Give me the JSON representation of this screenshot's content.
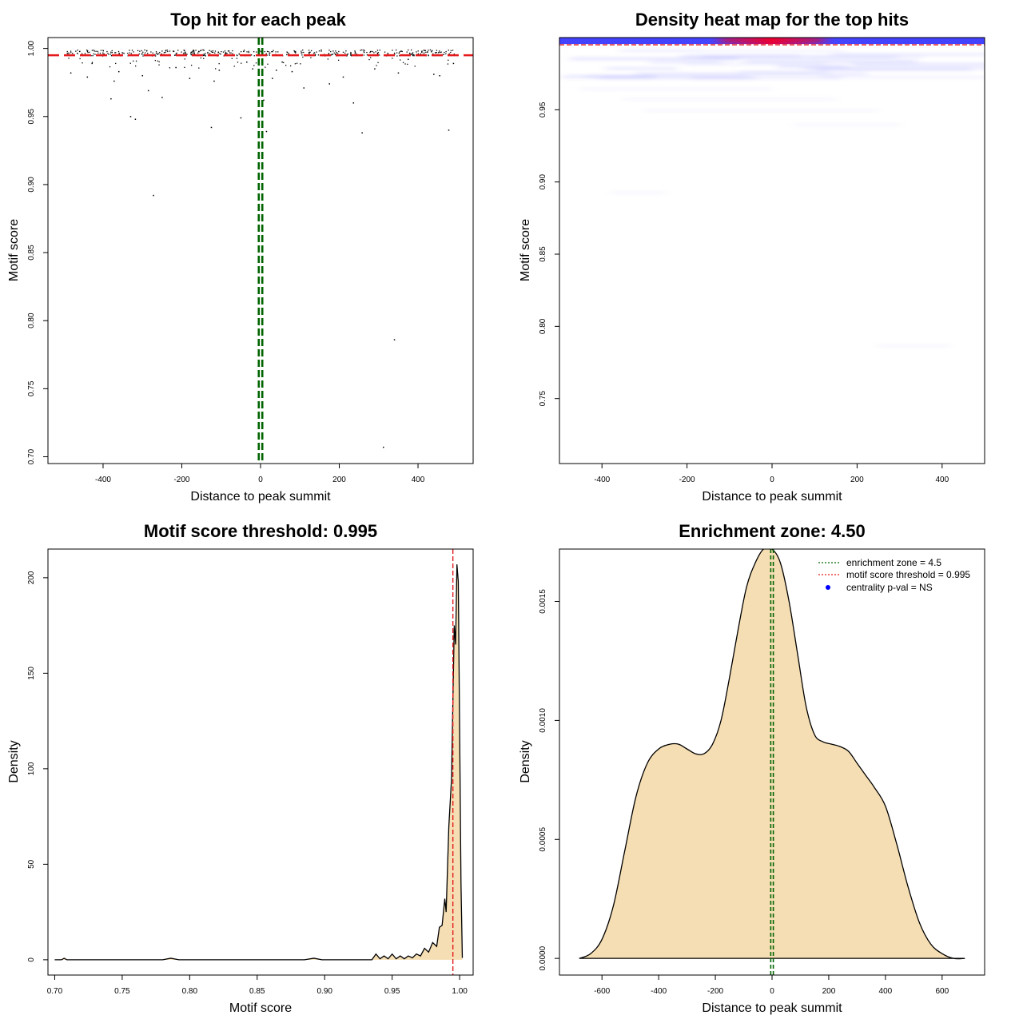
{
  "chart_data": [
    {
      "type": "scatter",
      "title": "Top hit for each peak",
      "xlabel": "Distance to peak summit",
      "ylabel": "Motif score",
      "xlim": [
        -540,
        540
      ],
      "ylim": [
        0.695,
        1.008
      ],
      "xticks": [
        "-400",
        "-200",
        "0",
        "200",
        "400"
      ],
      "yticks": [
        "0.70",
        "0.75",
        "0.80",
        "0.85",
        "0.90",
        "0.95",
        "1.00"
      ],
      "threshold": 0.995,
      "zone": [
        -4.5,
        4.5
      ],
      "colors": {
        "threshold": "#e41a1c",
        "zone": "#006400",
        "points": "#000000"
      },
      "outliers": [
        {
          "x": -482,
          "y": 0.982
        },
        {
          "x": -440,
          "y": 0.979
        },
        {
          "x": -428,
          "y": 0.989
        },
        {
          "x": -380,
          "y": 0.963
        },
        {
          "x": -372,
          "y": 0.976
        },
        {
          "x": -360,
          "y": 0.983
        },
        {
          "x": -330,
          "y": 0.95
        },
        {
          "x": -318,
          "y": 0.948
        },
        {
          "x": -300,
          "y": 0.98
        },
        {
          "x": -285,
          "y": 0.969
        },
        {
          "x": -272,
          "y": 0.892
        },
        {
          "x": -250,
          "y": 0.964
        },
        {
          "x": -215,
          "y": 0.986
        },
        {
          "x": -180,
          "y": 0.978
        },
        {
          "x": -125,
          "y": 0.942
        },
        {
          "x": -118,
          "y": 0.976
        },
        {
          "x": -105,
          "y": 0.984
        },
        {
          "x": -50,
          "y": 0.949
        },
        {
          "x": -35,
          "y": 0.99
        },
        {
          "x": -20,
          "y": 0.985
        },
        {
          "x": 8,
          "y": 0.962
        },
        {
          "x": 15,
          "y": 0.939
        },
        {
          "x": 30,
          "y": 0.978
        },
        {
          "x": 40,
          "y": 0.984
        },
        {
          "x": 55,
          "y": 0.99
        },
        {
          "x": 80,
          "y": 0.983
        },
        {
          "x": 110,
          "y": 0.971
        },
        {
          "x": 175,
          "y": 0.974
        },
        {
          "x": 210,
          "y": 0.979
        },
        {
          "x": 236,
          "y": 0.96
        },
        {
          "x": 258,
          "y": 0.938
        },
        {
          "x": 290,
          "y": 0.985
        },
        {
          "x": 312,
          "y": 0.707
        },
        {
          "x": 340,
          "y": 0.786
        },
        {
          "x": 350,
          "y": 0.982
        },
        {
          "x": 375,
          "y": 0.992
        },
        {
          "x": 440,
          "y": 0.981
        },
        {
          "x": 455,
          "y": 0.98
        },
        {
          "x": 478,
          "y": 0.94
        },
        {
          "x": 490,
          "y": 0.989
        }
      ]
    },
    {
      "type": "heatmap",
      "title": "Density heat map for the top hits",
      "xlabel": "Distance to peak summit",
      "ylabel": "Motif score",
      "xlim": [
        -500,
        500
      ],
      "ylim": [
        0.705,
        1.0
      ],
      "xticks": [
        "-400",
        "-200",
        "0",
        "200",
        "400"
      ],
      "yticks": [
        "0.75",
        "0.80",
        "0.85",
        "0.90",
        "0.95"
      ],
      "threshold": 0.995,
      "zone": [
        -4.5,
        4.5
      ],
      "colors": {
        "low": "#ffffff",
        "mid": "#0000ff",
        "high": "#ff0000"
      }
    },
    {
      "type": "area",
      "title": "Motif score threshold: 0.995",
      "xlabel": "Motif score",
      "ylabel": "Density",
      "xlim": [
        0.695,
        1.01
      ],
      "ylim": [
        -8,
        215
      ],
      "xticks": [
        "0.70",
        "0.75",
        "0.80",
        "0.85",
        "0.90",
        "0.95",
        "1.00"
      ],
      "yticks": [
        "0",
        "50",
        "100",
        "150",
        "200"
      ],
      "threshold": 0.995,
      "fill": "#f5deb3",
      "colors": {
        "threshold": "#e41a1c"
      },
      "x": [
        0.7,
        0.705,
        0.707,
        0.709,
        0.712,
        0.78,
        0.786,
        0.792,
        0.885,
        0.892,
        0.898,
        0.935,
        0.938,
        0.941,
        0.944,
        0.947,
        0.95,
        0.953,
        0.956,
        0.959,
        0.962,
        0.965,
        0.968,
        0.971,
        0.974,
        0.977,
        0.98,
        0.983,
        0.985,
        0.987,
        0.989,
        0.99,
        0.992,
        0.994,
        0.996,
        0.997,
        0.998,
        0.999,
        1.0,
        1.001,
        1.002
      ],
      "y": [
        0,
        0,
        0.8,
        0,
        0,
        0,
        0.8,
        0,
        0,
        0.8,
        0,
        0,
        3,
        0.5,
        2,
        0.5,
        3,
        0.5,
        2,
        0.5,
        2,
        1,
        3,
        2,
        6,
        4,
        9,
        7,
        17,
        18,
        32,
        25,
        70,
        95,
        175,
        165,
        207,
        198,
        120,
        40,
        1
      ]
    },
    {
      "type": "area",
      "title": "Enrichment zone: 4.50",
      "xlabel": "Distance to peak summit",
      "ylabel": "Density",
      "xlim": [
        -750,
        750
      ],
      "ylim": [
        -7e-05,
        0.00172
      ],
      "xticks": [
        "-600",
        "-400",
        "-200",
        "0",
        "200",
        "400",
        "600"
      ],
      "yticks": [
        "0.0000",
        "0.0005",
        "0.0010",
        "0.0015"
      ],
      "zone": [
        -4.5,
        4.5
      ],
      "fill": "#f5deb3",
      "colors": {
        "zone": "#006400",
        "threshold": "#e41a1c",
        "pval": "#0000ff"
      },
      "x": [
        -680,
        -640,
        -600,
        -560,
        -520,
        -480,
        -440,
        -400,
        -360,
        -330,
        -300,
        -270,
        -240,
        -210,
        -180,
        -150,
        -120,
        -90,
        -60,
        -30,
        0,
        30,
        60,
        90,
        120,
        150,
        180,
        210,
        240,
        270,
        300,
        330,
        360,
        400,
        440,
        480,
        520,
        560,
        600,
        640,
        680
      ],
      "y": [
        0,
        2e-05,
        8e-05,
        0.00022,
        0.00045,
        0.00068,
        0.00082,
        0.00088,
        0.0009,
        0.0009,
        0.00088,
        0.00086,
        0.00086,
        0.0009,
        0.001,
        0.00118,
        0.00138,
        0.00156,
        0.00166,
        0.00172,
        0.00172,
        0.00166,
        0.0015,
        0.00128,
        0.00106,
        0.00094,
        0.00091,
        0.0009,
        0.00089,
        0.00087,
        0.00082,
        0.00077,
        0.00072,
        0.00064,
        0.00048,
        0.0003,
        0.00015,
        6e-05,
        2e-05,
        0.0,
        0.0
      ],
      "legend": [
        "enrichment zone = 4.5",
        "motif score threshold = 0.995",
        "centrality p-val = NS"
      ]
    }
  ]
}
